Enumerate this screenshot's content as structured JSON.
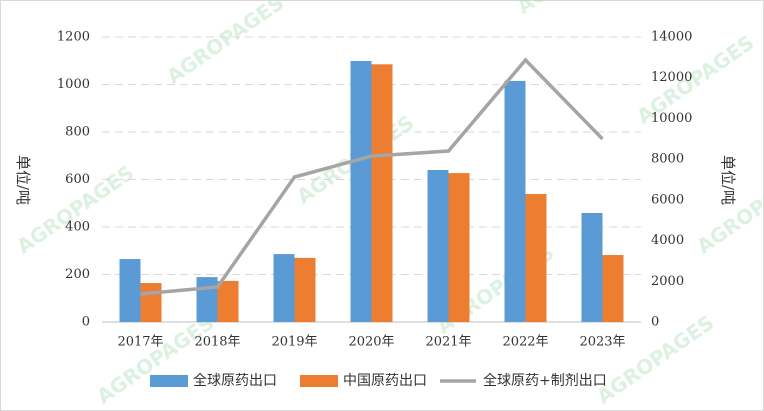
{
  "chart_data": {
    "type": "bar",
    "categories": [
      "2017年",
      "2018年",
      "2019年",
      "2020年",
      "2021年",
      "2022年",
      "2023年"
    ],
    "series": [
      {
        "name": "全球原药出口",
        "color": "#5b9bd5",
        "values": [
          265,
          189,
          286,
          1099,
          640,
          1015,
          459
        ]
      },
      {
        "name": "中国原药出口",
        "color": "#ed7d31",
        "values": [
          164,
          173,
          270,
          1085,
          627,
          539,
          282
        ]
      },
      {
        "name": "全球原药+制剂出口",
        "color": "#a5a5a5",
        "axis": "y2",
        "type": "line",
        "values": [
          1375,
          1720,
          7120,
          8150,
          8400,
          12870,
          8990
        ]
      }
    ],
    "ylabel": "单位/吨",
    "y2label": "单位/吨",
    "ylim": [
      0,
      1200
    ],
    "yticks": [
      0,
      200,
      400,
      600,
      800,
      1000,
      1200
    ],
    "y2lim": [
      0,
      14000
    ],
    "y2ticks": [
      0,
      2000,
      4000,
      6000,
      8000,
      10000,
      12000,
      14000
    ],
    "grid": true,
    "legend": "bottom",
    "watermark": "AGROPAGES"
  }
}
